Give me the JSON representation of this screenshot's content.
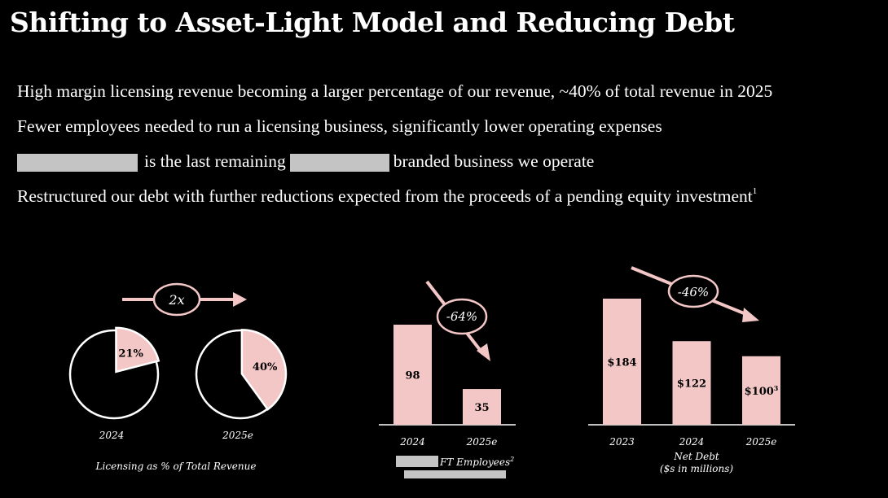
{
  "title": "Shifting to Asset-Light Model and Reducing Debt",
  "bullets": {
    "b1": "High margin licensing revenue becoming a larger percentage of our revenue, ~40% of total revenue in 2025",
    "b2": "Fewer employees needed to run a licensing business, significantly lower operating expenses",
    "b3_a": "is the last remaining",
    "b3_b": "branded business we operate",
    "b4": "Restructured our debt with further reductions expected from the proceeds of a pending equity investment",
    "b4_sup": "1"
  },
  "colors": {
    "accent": "#f4c7c7",
    "background": "#000000",
    "redaction": "#c4c4c4"
  },
  "chart_data": [
    {
      "type": "pie",
      "caption": "Licensing as % of Total Revenue",
      "arrow_label": "2x",
      "pies": [
        {
          "year": "2024",
          "value": 21,
          "label": "21%"
        },
        {
          "year": "2025e",
          "value": 40,
          "label": "40%"
        }
      ]
    },
    {
      "type": "bar",
      "categories": [
        "2024",
        "2025e"
      ],
      "values": [
        98,
        35
      ],
      "labels": [
        "98",
        "35"
      ],
      "arrow_label": "-64%",
      "caption": "FT Employees",
      "caption_sup": "2",
      "ylim": [
        0,
        98
      ]
    },
    {
      "type": "bar",
      "categories": [
        "2023",
        "2024",
        "2025e"
      ],
      "values": [
        184,
        122,
        100
      ],
      "labels": [
        "$184",
        "$122",
        "$100"
      ],
      "label_sup": [
        "",
        "",
        "3"
      ],
      "arrow_label": "-46%",
      "caption_line1": "Net Debt",
      "caption_line2": "($s in millions)",
      "ylim": [
        0,
        184
      ]
    }
  ]
}
